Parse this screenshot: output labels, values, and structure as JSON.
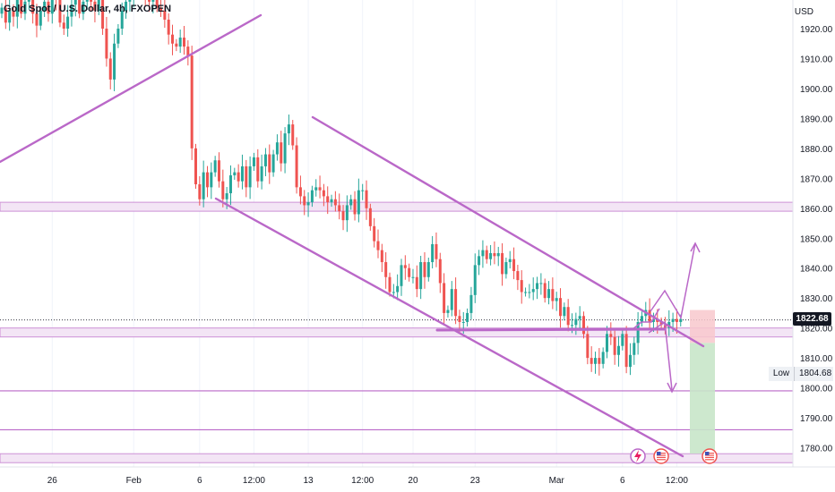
{
  "header": {
    "symbol_line": "Gold Spot / U.S. Dollar, 4h, FXOPEN"
  },
  "price_axis": {
    "currency": "USD",
    "last_price_label": "1822.68",
    "low_label": "Low",
    "low_value": "1804.68"
  },
  "colors": {
    "up": "#26a69a",
    "down": "#ef5350",
    "drawing": "#ba68c8",
    "zone_fill": "#f3e5f5",
    "stop_fill": "#f8c8cc",
    "target_fill": "#c8e6c9",
    "background": "#ffffff"
  },
  "icons": [
    "lightning-icon",
    "us-flag-icon",
    "us-flag-icon"
  ],
  "chart_data": {
    "type": "candlestick",
    "title": "Gold Spot / U.S. Dollar, 4h, FXOPEN",
    "ylim": [
      1775,
      1926
    ],
    "y_ticks": [
      1780,
      1790,
      1800,
      1810,
      1820,
      1830,
      1840,
      1850,
      1860,
      1870,
      1880,
      1890,
      1900,
      1910,
      1920
    ],
    "y_tick_labels": [
      "1780.00",
      "1790.00",
      "1800.00",
      "1810.00",
      "1820.00",
      "1830.00",
      "1840.00",
      "1850.00",
      "1860.00",
      "1870.00",
      "1880.00",
      "1890.00",
      "1900.00",
      "1910.00",
      "1920.00"
    ],
    "x_tick_labels": [
      "26",
      "Feb",
      "6",
      "12:00",
      "13",
      "12:00",
      "20",
      "23",
      "Mar",
      "6",
      "12:00"
    ],
    "x_tick_bars": [
      13,
      34,
      51,
      65,
      79,
      93,
      106,
      122,
      143,
      160,
      174
    ],
    "bars_visible": 176,
    "closes": [
      1927,
      1922,
      1926,
      1924,
      1930,
      1925,
      1929,
      1931,
      1925,
      1921,
      1926,
      1929,
      1925,
      1931,
      1930,
      1922,
      1920,
      1924,
      1928,
      1932,
      1925,
      1929,
      1933,
      1929,
      1926,
      1930,
      1920,
      1910,
      1903,
      1915,
      1920,
      1926,
      1929,
      1931,
      1934,
      1932,
      1933,
      1930,
      1929,
      1934,
      1927,
      1926,
      1923,
      1918,
      1915,
      1914,
      1917,
      1914,
      1911,
      1880,
      1868,
      1863,
      1872,
      1867,
      1872,
      1876,
      1869,
      1863,
      1865,
      1871,
      1872,
      1869,
      1874,
      1867,
      1874,
      1877,
      1869,
      1874,
      1878,
      1872,
      1878,
      1882,
      1875,
      1885,
      1888,
      1881,
      1867,
      1864,
      1861,
      1862,
      1866,
      1867,
      1866,
      1864,
      1862,
      1863,
      1861,
      1859,
      1856,
      1861,
      1863,
      1858,
      1866,
      1866,
      1860,
      1854,
      1849,
      1846,
      1842,
      1837,
      1832,
      1832,
      1834,
      1841,
      1840,
      1837,
      1837,
      1833,
      1842,
      1837,
      1842,
      1848,
      1843,
      1835,
      1825,
      1826,
      1833,
      1824,
      1822,
      1822,
      1825,
      1831,
      1841,
      1844,
      1846,
      1843,
      1845,
      1844,
      1845,
      1838,
      1842,
      1843,
      1839,
      1836,
      1832,
      1832,
      1832,
      1833,
      1835,
      1835,
      1830,
      1833,
      1829,
      1830,
      1824,
      1827,
      1821,
      1821,
      1823,
      1824,
      1818,
      1810,
      1808,
      1810,
      1808,
      1812,
      1818,
      1817,
      1811,
      1814,
      1818,
      1807,
      1811,
      1815,
      1822,
      1824,
      1826,
      1822,
      1823,
      1822,
      1821,
      1820,
      1822,
      1823,
      1822,
      1823
    ],
    "price_lines": [
      1822.68
    ],
    "zones": [
      [
        1859,
        1862
      ],
      [
        1817,
        1820
      ],
      [
        1775,
        1778
      ]
    ],
    "horizontal_levels": [
      1799,
      1786
    ],
    "last_price": 1822.68,
    "low": 1804.68,
    "position": {
      "entry": 1815,
      "stop": 1826,
      "target": 1778
    }
  }
}
